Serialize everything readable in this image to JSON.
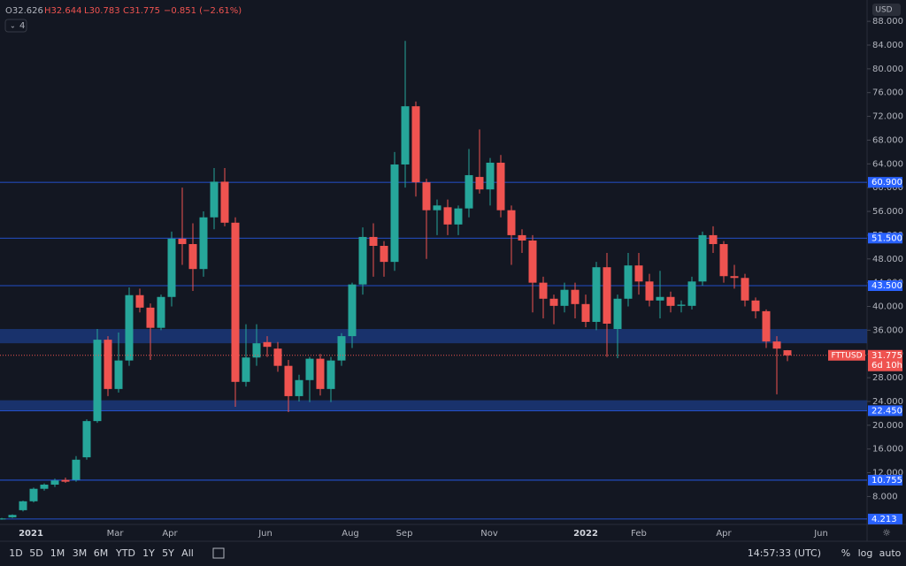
{
  "chart_data": {
    "type": "candlestick",
    "currency": "USD",
    "indicator_count": "4",
    "legend": {
      "open": "O32.626",
      "high": "H32.644",
      "low": "L30.783",
      "close": "C31.775",
      "change": "−0.851 (−2.61%)"
    },
    "x_labels": [
      "2021",
      "Mar",
      "Apr",
      "Jun",
      "Aug",
      "Sep",
      "Nov",
      "2022",
      "Feb",
      "Apr",
      "Jun"
    ],
    "open": [
      4.2,
      4.5,
      5.7,
      7.2,
      9.3,
      10.0,
      10.8,
      10.8,
      14.6,
      20.7,
      34.4,
      26.1,
      30.9,
      41.9,
      39.8,
      36.4,
      41.6,
      51.4,
      50.5,
      46.3,
      55.0,
      61.0,
      54.1,
      27.3,
      31.4,
      34.0,
      32.9,
      30.0,
      24.9,
      27.6,
      31.2,
      26.1,
      30.9,
      35.0,
      43.7,
      51.7,
      50.2,
      47.5,
      63.9,
      73.7,
      60.9,
      56.2,
      56.7,
      53.8,
      56.5,
      61.8,
      59.7,
      64.2,
      56.2,
      52.0,
      51.1,
      44.0,
      41.3,
      40.1,
      42.8,
      40.4,
      37.4,
      46.6,
      36.2,
      41.3,
      46.9,
      44.2,
      41.0,
      41.6,
      40.1,
      40.1,
      44.2,
      52.0,
      50.5,
      45.1,
      44.8,
      41.0,
      39.2,
      34.1,
      32.626
    ],
    "high": [
      4.4,
      5.0,
      7.3,
      9.5,
      10.2,
      11.0,
      11.2,
      14.8,
      21.0,
      36.2,
      35.0,
      35.6,
      43.2,
      43.0,
      40.5,
      42.0,
      52.6,
      60.0,
      54.0,
      56.0,
      63.3,
      63.3,
      55.0,
      37.0,
      37.0,
      35.0,
      34.0,
      31.0,
      28.5,
      31.5,
      32.0,
      31.5,
      35.5,
      44.0,
      53.3,
      54.0,
      51.0,
      66.0,
      84.7,
      74.5,
      61.5,
      58.0,
      58.0,
      57.0,
      66.5,
      69.8,
      65.0,
      65.5,
      57.0,
      53.0,
      52.0,
      45.0,
      42.0,
      44.0,
      44.0,
      42.0,
      47.5,
      49.0,
      42.0,
      49.0,
      49.0,
      45.5,
      46.0,
      42.5,
      41.0,
      45.0,
      52.6,
      53.5,
      51.0,
      47.0,
      45.5,
      41.5,
      39.5,
      35.0,
      32.644
    ],
    "low": [
      4.1,
      4.4,
      5.5,
      7.0,
      9.0,
      9.6,
      10.3,
      10.5,
      14.2,
      20.4,
      24.9,
      25.5,
      30.0,
      39.0,
      31.0,
      36.0,
      40.0,
      47.0,
      42.6,
      45.0,
      53.0,
      53.5,
      23.1,
      26.5,
      30.0,
      31.5,
      29.0,
      22.2,
      24.0,
      23.9,
      25.0,
      23.9,
      30.0,
      33.0,
      42.0,
      45.0,
      45.0,
      46.0,
      60.0,
      58.5,
      48.0,
      52.0,
      52.0,
      52.0,
      55.0,
      59.0,
      57.0,
      55.0,
      47.0,
      49.0,
      39.0,
      38.0,
      37.0,
      39.0,
      38.0,
      36.5,
      36.0,
      31.5,
      31.3,
      40.0,
      42.0,
      40.0,
      38.0,
      39.0,
      39.0,
      39.5,
      43.5,
      49.0,
      44.0,
      43.0,
      40.0,
      38.0,
      33.0,
      25.2,
      30.783
    ],
    "close": [
      4.3,
      4.9,
      7.2,
      9.3,
      10.0,
      10.7,
      10.5,
      14.2,
      20.7,
      34.4,
      26.1,
      30.9,
      41.9,
      39.8,
      36.4,
      41.6,
      51.4,
      50.5,
      46.3,
      55.0,
      61.0,
      54.1,
      27.3,
      31.4,
      33.8,
      33.2,
      30.0,
      24.9,
      27.6,
      31.2,
      26.1,
      30.9,
      35.0,
      43.7,
      51.7,
      50.2,
      47.5,
      63.9,
      73.7,
      60.9,
      56.2,
      57.0,
      53.8,
      56.5,
      62.1,
      59.7,
      64.2,
      56.2,
      52.0,
      51.1,
      44.0,
      41.3,
      40.1,
      42.8,
      40.4,
      37.4,
      46.6,
      37.1,
      41.3,
      46.9,
      44.2,
      41.0,
      41.6,
      40.1,
      40.3,
      44.2,
      52.0,
      50.5,
      45.1,
      44.8,
      41.0,
      39.2,
      34.1,
      32.9,
      31.775
    ],
    "up_color": "#26a69a",
    "down_color": "#ef5350",
    "ylim": [
      3.3,
      90.4
    ],
    "yticks": [
      {
        "value": 8,
        "label": "8.000"
      },
      {
        "value": 12,
        "label": "12.000"
      },
      {
        "value": 16,
        "label": "16.000"
      },
      {
        "value": 20,
        "label": "20.000"
      },
      {
        "value": 24,
        "label": "24.000"
      },
      {
        "value": 28,
        "label": "28.000"
      },
      {
        "value": 32,
        "label": "32.000"
      },
      {
        "value": 36,
        "label": "36.000"
      },
      {
        "value": 40,
        "label": "40.000"
      },
      {
        "value": 44,
        "label": "44.000"
      },
      {
        "value": 48,
        "label": "48.000"
      },
      {
        "value": 52,
        "label": "52.000"
      },
      {
        "value": 56,
        "label": "56.000"
      },
      {
        "value": 60,
        "label": "60.000"
      },
      {
        "value": 64,
        "label": "64.000"
      },
      {
        "value": 68,
        "label": "68.000"
      },
      {
        "value": 72,
        "label": "72.000"
      },
      {
        "value": 76,
        "label": "76.000"
      },
      {
        "value": 80,
        "label": "80.000"
      },
      {
        "value": 84,
        "label": "84.000"
      },
      {
        "value": 88,
        "label": "88.000"
      }
    ],
    "levels": [
      {
        "value": 60.9,
        "label": "60.900"
      },
      {
        "value": 51.5,
        "label": "51.500"
      },
      {
        "value": 43.5,
        "label": "43.500"
      },
      {
        "value": 22.45,
        "label": "22.450"
      },
      {
        "value": 10.755,
        "label": "10.755"
      },
      {
        "value": 4.213,
        "label": "4.213"
      }
    ],
    "zones": [
      {
        "low": 33.8,
        "high": 36.2
      },
      {
        "low": 22.45,
        "high": 24.2
      }
    ],
    "last_price": {
      "symbol": "FTTUSD",
      "value": 31.775,
      "label": "31.775",
      "countdown": "6d 10h"
    },
    "toolbar": {
      "ranges": [
        "1D",
        "5D",
        "1M",
        "3M",
        "6M",
        "YTD",
        "1Y",
        "5Y",
        "All"
      ],
      "time": "14:57:33 (UTC)",
      "percent": "%",
      "log": "log",
      "auto": "auto"
    }
  }
}
